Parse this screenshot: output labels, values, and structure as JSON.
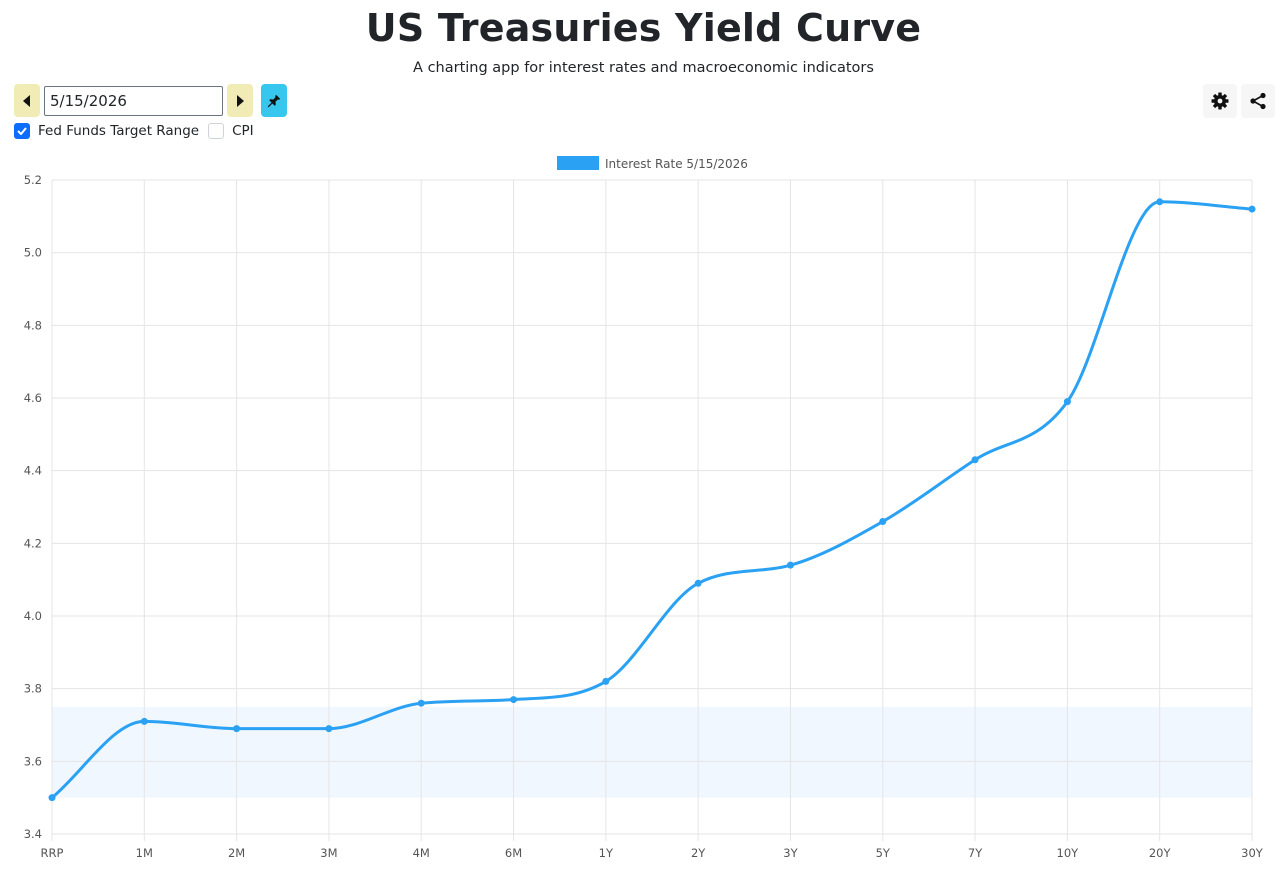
{
  "header": {
    "title": "US Treasuries Yield Curve",
    "subtitle": "A charting app for interest rates and macroeconomic indicators"
  },
  "controls": {
    "date_value": "5/15/2026",
    "prev_icon": "caret-left-icon",
    "next_icon": "caret-right-icon",
    "pin_icon": "pin-icon",
    "settings_icon": "gear-icon",
    "share_icon": "share-icon",
    "checkboxes": [
      {
        "label": "Fed Funds Target Range",
        "checked": true
      },
      {
        "label": "CPI",
        "checked": false
      }
    ]
  },
  "colors": {
    "series": "#2aa1f2",
    "band": "#f1f7ff",
    "nav_button": "#f1ecb6",
    "pin_button": "#36c6ee",
    "checkbox": "#0d6efd"
  },
  "chart_data": {
    "type": "line",
    "categories": [
      "RRP",
      "1M",
      "2M",
      "3M",
      "4M",
      "6M",
      "1Y",
      "2Y",
      "3Y",
      "5Y",
      "7Y",
      "10Y",
      "20Y",
      "30Y"
    ],
    "series": [
      {
        "name": "Interest Rate 5/15/2026",
        "values": [
          3.5,
          3.71,
          3.69,
          3.69,
          3.76,
          3.77,
          3.82,
          4.09,
          4.14,
          4.26,
          4.43,
          4.59,
          5.14,
          5.12
        ]
      }
    ],
    "band": {
      "label": "Fed Funds Target Range",
      "low": 3.5,
      "high": 3.75
    },
    "ylim": [
      3.4,
      5.2
    ],
    "yticks": [
      "3.4",
      "3.6",
      "3.8",
      "4.0",
      "4.2",
      "4.4",
      "4.6",
      "4.8",
      "5.0",
      "5.2"
    ],
    "grid": true,
    "legend": "top-center"
  }
}
